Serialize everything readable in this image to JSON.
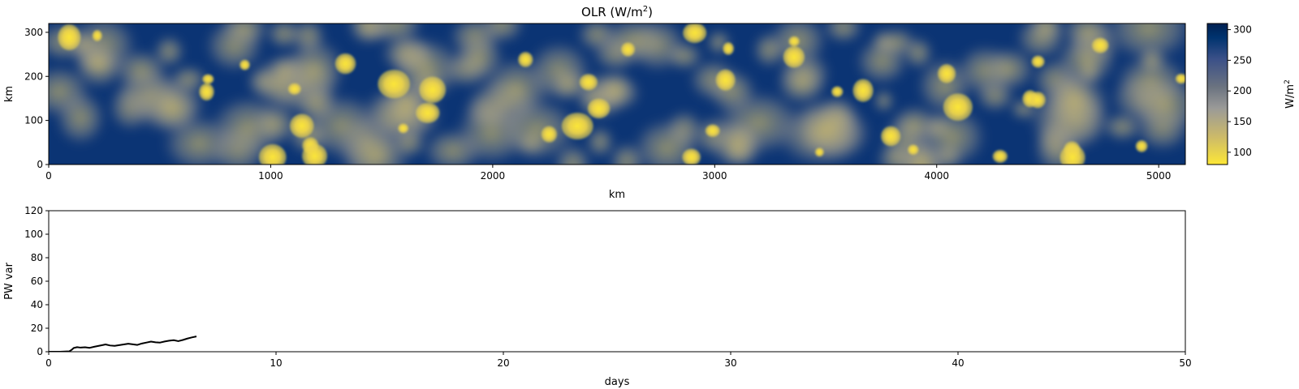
{
  "chart_data": [
    {
      "type": "heatmap",
      "title": "OLR (W/m²)",
      "title_main": "OLR (W/m",
      "title_sup": "2",
      "title_close": ")",
      "xlabel": "km",
      "ylabel": "km",
      "xlim": [
        0,
        5120
      ],
      "ylim": [
        0,
        320
      ],
      "x_ticks": [
        0,
        1000,
        2000,
        3000,
        4000,
        5000
      ],
      "y_ticks": [
        0,
        100,
        200,
        300
      ],
      "colormap": "cividis (reversed: yellow = low OLR, dark blue = high OLR)",
      "colors": [
        "#fde737",
        "#cbb96a",
        "#9a9a98",
        "#6b7380",
        "#3a5088",
        "#00336f",
        "#002051"
      ],
      "background_value": 300,
      "cloud_value_min": 85,
      "colorbar": {
        "label": "W/m²",
        "label_main": "W/m",
        "label_sup": "2",
        "range": [
          80,
          310
        ],
        "ticks": [
          100,
          150,
          200,
          250,
          300
        ]
      }
    },
    {
      "type": "line",
      "title": "",
      "xlabel": "days",
      "ylabel": "PW var",
      "xlim": [
        0,
        50
      ],
      "ylim": [
        0,
        120
      ],
      "x_ticks": [
        0,
        10,
        20,
        30,
        40,
        50
      ],
      "y_ticks": [
        0,
        20,
        40,
        60,
        80,
        100,
        120
      ],
      "grid": false,
      "series": [
        {
          "color": "#000000",
          "x": [
            0,
            0.5,
            0.9,
            1.0,
            1.1,
            1.25,
            1.4,
            1.6,
            1.8,
            2.0,
            2.2,
            2.4,
            2.5,
            2.7,
            2.9,
            3.1,
            3.3,
            3.5,
            3.7,
            3.9,
            4.1,
            4.3,
            4.5,
            4.7,
            4.9,
            5.1,
            5.3,
            5.5,
            5.7,
            5.9,
            6.1,
            6.3,
            6.5
          ],
          "y": [
            0,
            0,
            0.3,
            1.5,
            3.2,
            3.9,
            3.5,
            3.8,
            3.3,
            4.2,
            5.0,
            5.8,
            6.2,
            5.3,
            5.0,
            5.6,
            6.2,
            6.8,
            6.3,
            5.8,
            7.0,
            7.8,
            8.6,
            8.0,
            7.8,
            8.7,
            9.4,
            9.8,
            9.0,
            10.0,
            11.2,
            12.2,
            13.0
          ]
        }
      ]
    }
  ]
}
